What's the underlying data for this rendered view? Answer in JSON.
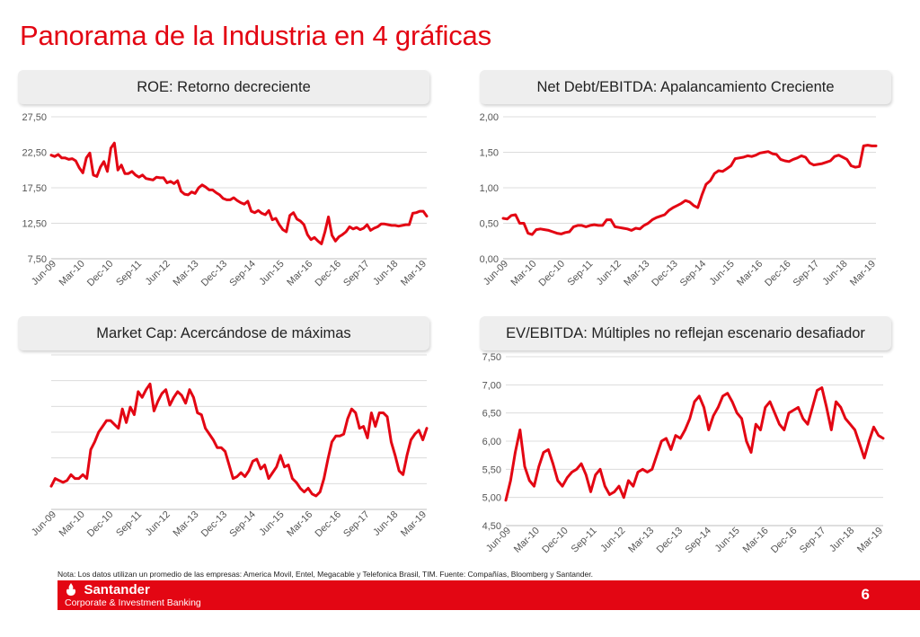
{
  "page": {
    "title": "Panorama de la Industria en 4 gráficas",
    "note": "Nota: Los datos utilizan un promedio de las empresas: America Movil, Entel, Megacable y Telefonica Brasil, TIM. Fuente: Compañías, Bloomberg y Santander.",
    "brand_name": "Santander",
    "brand_sub": "Corporate & Investment Banking",
    "page_number": "6",
    "accent_color": "#e30613",
    "line_color": "#e30613"
  },
  "chart_data": [
    {
      "type": "line",
      "title": "ROE: Retorno decreciente",
      "xlabel": "",
      "ylabel": "",
      "x_ticks": [
        "Jun-09",
        "Mar-10",
        "Dec-10",
        "Sep-11",
        "Jun-12",
        "Mar-13",
        "Dec-13",
        "Sep-14",
        "Jun-15",
        "Mar-16",
        "Dec-16",
        "Sep-17",
        "Jun-18",
        "Mar-19"
      ],
      "y_ticks": [
        "27,50",
        "22,50",
        "17,50",
        "12,50",
        "7,50"
      ],
      "ylim": [
        7.5,
        27.5
      ],
      "grid": true,
      "series": [
        {
          "values": [
            22.1,
            21.9,
            22.2,
            21.7,
            21.7,
            21.5,
            21.6,
            21.3,
            20.3,
            19.6,
            21.7,
            22.4,
            19.3,
            19.1,
            20.4,
            21.2,
            19.8,
            23.1,
            23.8,
            20.0,
            20.7,
            19.5,
            19.5,
            19.8,
            19.3,
            19.0,
            19.3,
            18.8,
            18.7,
            18.6,
            19.0,
            18.9,
            18.9,
            18.2,
            18.4,
            18.1,
            18.5,
            17.0,
            16.6,
            16.5,
            16.9,
            16.7,
            17.5,
            17.9,
            17.6,
            17.2,
            17.2,
            16.8,
            16.5,
            16.0,
            15.8,
            15.8,
            16.1,
            15.7,
            15.4,
            15.2,
            15.6,
            14.2,
            14.0,
            14.3,
            13.9,
            13.7,
            14.3,
            13.0,
            13.2,
            12.3,
            11.6,
            11.3,
            13.6,
            14.0,
            13.1,
            12.8,
            12.3,
            10.9,
            10.2,
            10.5,
            10.0,
            9.6,
            11.3,
            13.4,
            10.8,
            10.0,
            10.6,
            10.9,
            11.3,
            12.0,
            11.7,
            11.9,
            11.6,
            11.8,
            12.3,
            11.5,
            11.8,
            12.0,
            12.4,
            12.4,
            12.3,
            12.2,
            12.2,
            12.1,
            12.2,
            12.3,
            12.3,
            13.9,
            14.0,
            14.2,
            14.2,
            13.5
          ]
        }
      ]
    },
    {
      "type": "line",
      "title": "Net Debt/EBITDA: Apalancamiento Creciente",
      "xlabel": "",
      "ylabel": "",
      "x_ticks": [
        "Jun-09",
        "Mar-10",
        "Dec-10",
        "Sep-11",
        "Jun-12",
        "Mar-13",
        "Dec-13",
        "Sep-14",
        "Jun-15",
        "Mar-16",
        "Dec-16",
        "Sep-17",
        "Jun-18",
        "Mar-19"
      ],
      "y_ticks": [
        "2,00",
        "1,50",
        "1,00",
        "0,50",
        "0,00"
      ],
      "ylim": [
        0,
        2.0
      ],
      "grid": true,
      "series": [
        {
          "values": [
            0.57,
            0.56,
            0.61,
            0.62,
            0.5,
            0.5,
            0.36,
            0.34,
            0.41,
            0.42,
            0.41,
            0.4,
            0.38,
            0.36,
            0.35,
            0.37,
            0.38,
            0.45,
            0.47,
            0.47,
            0.45,
            0.47,
            0.48,
            0.47,
            0.47,
            0.55,
            0.55,
            0.45,
            0.44,
            0.43,
            0.42,
            0.4,
            0.43,
            0.42,
            0.47,
            0.5,
            0.55,
            0.58,
            0.6,
            0.62,
            0.68,
            0.72,
            0.75,
            0.78,
            0.82,
            0.8,
            0.75,
            0.72,
            0.9,
            1.05,
            1.1,
            1.2,
            1.24,
            1.23,
            1.27,
            1.31,
            1.41,
            1.42,
            1.43,
            1.45,
            1.44,
            1.46,
            1.49,
            1.5,
            1.51,
            1.48,
            1.47,
            1.4,
            1.38,
            1.37,
            1.4,
            1.42,
            1.45,
            1.43,
            1.35,
            1.32,
            1.33,
            1.34,
            1.36,
            1.38,
            1.44,
            1.46,
            1.43,
            1.4,
            1.31,
            1.29,
            1.3,
            1.59,
            1.6,
            1.59,
            1.59
          ]
        }
      ]
    },
    {
      "type": "line",
      "title": "Market Cap: Acercándose de máximas",
      "xlabel": "",
      "ylabel": "",
      "x_ticks": [
        "Jun-09",
        "Mar-10",
        "Dec-10",
        "Sep-11",
        "Jun-12",
        "Mar-13",
        "Dec-13",
        "Sep-14",
        "Jun-15",
        "Mar-16",
        "Dec-16",
        "Sep-17",
        "Jun-18",
        "Mar-19"
      ],
      "y_ticks": [],
      "ylim": [
        0,
        8
      ],
      "grid": true,
      "series": [
        {
          "values": [
            1.2,
            1.6,
            1.5,
            1.4,
            1.5,
            1.8,
            1.6,
            1.6,
            1.8,
            1.6,
            3.1,
            3.5,
            4.0,
            4.3,
            4.6,
            4.6,
            4.4,
            4.2,
            5.2,
            4.5,
            5.3,
            4.9,
            6.1,
            5.8,
            6.2,
            6.5,
            5.1,
            5.6,
            6.0,
            6.2,
            5.4,
            5.8,
            6.1,
            5.9,
            5.5,
            6.2,
            5.8,
            5.0,
            4.9,
            4.2,
            3.9,
            3.6,
            3.2,
            3.2,
            3.0,
            2.3,
            1.6,
            1.7,
            1.9,
            1.7,
            2.0,
            2.5,
            2.6,
            2.1,
            2.3,
            1.6,
            1.9,
            2.2,
            2.8,
            2.2,
            2.3,
            1.6,
            1.4,
            1.1,
            0.9,
            1.1,
            0.8,
            0.7,
            0.9,
            1.6,
            2.6,
            3.5,
            3.8,
            3.8,
            3.9,
            4.7,
            5.2,
            5.0,
            4.2,
            4.3,
            3.7,
            5.0,
            4.3,
            5.0,
            5.0,
            4.8,
            3.5,
            2.8,
            2.0,
            1.8,
            2.8,
            3.6,
            3.9,
            4.1,
            3.6,
            4.2
          ]
        }
      ]
    },
    {
      "type": "line",
      "title": "EV/EBITDA: Múltiples no reflejan escenario desafiador",
      "xlabel": "",
      "ylabel": "",
      "x_ticks": [
        "Jun-09",
        "Mar-10",
        "Dec-10",
        "Sep-11",
        "Jun-12",
        "Mar-13",
        "Dec-13",
        "Sep-14",
        "Jun-15",
        "Mar-16",
        "Dec-16",
        "Sep-17",
        "Jun-18",
        "Mar-19"
      ],
      "y_ticks": [
        "7,50",
        "7,00",
        "6,50",
        "6,00",
        "5,50",
        "5,00",
        "4,50"
      ],
      "ylim": [
        4.5,
        7.5
      ],
      "grid": true,
      "series": [
        {
          "values": [
            4.95,
            5.3,
            5.8,
            6.2,
            5.55,
            5.3,
            5.2,
            5.55,
            5.8,
            5.85,
            5.6,
            5.3,
            5.2,
            5.35,
            5.45,
            5.5,
            5.6,
            5.4,
            5.1,
            5.4,
            5.5,
            5.2,
            5.05,
            5.1,
            5.2,
            5.0,
            5.3,
            5.2,
            5.45,
            5.5,
            5.45,
            5.5,
            5.75,
            6.0,
            6.05,
            5.85,
            6.1,
            6.05,
            6.2,
            6.4,
            6.7,
            6.8,
            6.6,
            6.2,
            6.45,
            6.6,
            6.8,
            6.85,
            6.7,
            6.5,
            6.4,
            6.0,
            5.8,
            6.3,
            6.2,
            6.6,
            6.7,
            6.5,
            6.3,
            6.2,
            6.5,
            6.55,
            6.6,
            6.4,
            6.3,
            6.6,
            6.9,
            6.95,
            6.6,
            6.2,
            6.7,
            6.6,
            6.4,
            6.3,
            6.2,
            5.95,
            5.7,
            6.0,
            6.25,
            6.1,
            6.05
          ]
        }
      ]
    }
  ]
}
